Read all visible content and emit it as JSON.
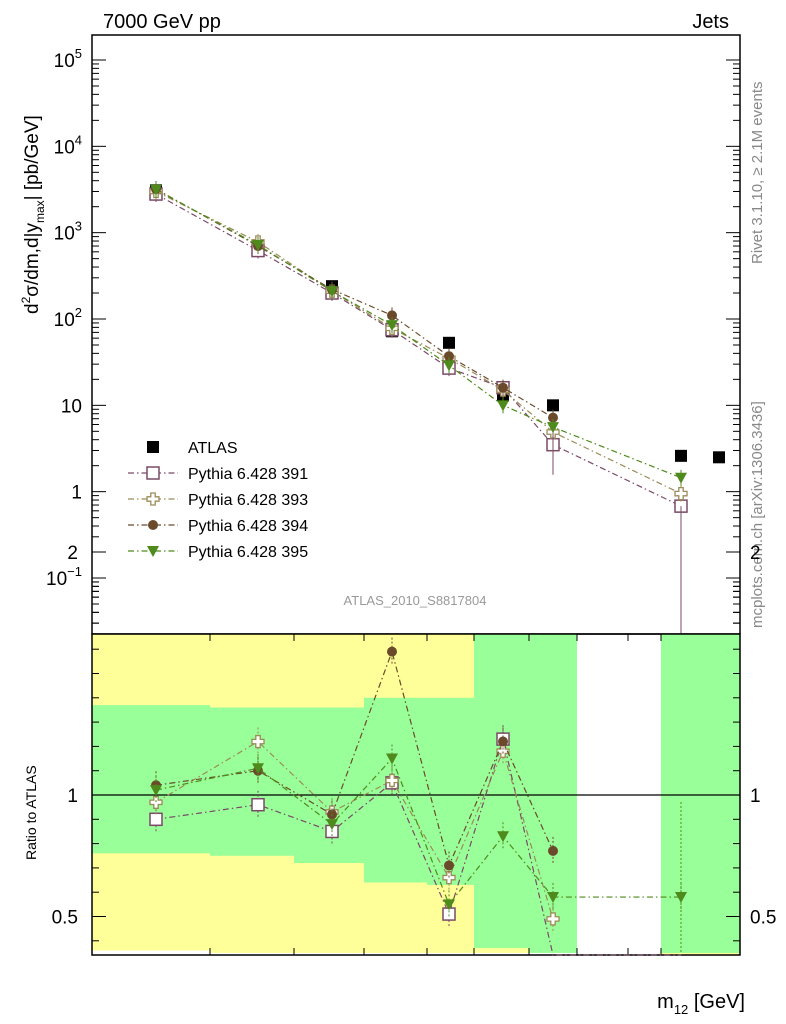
{
  "header": {
    "left": "7000 GeV pp",
    "right": "Jets"
  },
  "side_labels": {
    "rivet": "Rivet 3.1.10, ≥ 2.1M events",
    "mcplots": "mcplots.cern.ch [arXiv:1306.3436]"
  },
  "analysis_label": "ATLAS_2010_S8817804",
  "colors": {
    "atlas": "#000000",
    "p391": "#7a4a66",
    "p393": "#9a8c58",
    "p394": "#6b4a2c",
    "p395": "#4e8a1c",
    "band_inner": "#99ff99",
    "band_outer": "#ffff99"
  },
  "chart_data": [
    {
      "type": "scatter",
      "xlabel": "m12 [GeV]",
      "ylabel": "d²σ/dm,d|ymax| [pb/GeV]",
      "yscale": "log",
      "ylim": [
        0.025,
        200000
      ],
      "y_ticks": [
        "10^5",
        "10^4",
        "10^3",
        "10^2",
        "10",
        "1",
        "10^−1"
      ],
      "legend_position": "lower-left",
      "x": [
        1,
        2,
        3,
        4,
        5,
        6,
        7,
        8,
        9
      ],
      "series": [
        {
          "name": "ATLAS",
          "marker": "square-filled",
          "values": [
            3100,
            640,
            240,
            72,
            53,
            13,
            10,
            2.6,
            2.5
          ]
        },
        {
          "name": "Pythia 6.428 391",
          "marker": "square-open",
          "values": [
            2800,
            620,
            200,
            75,
            27,
            16,
            3.5,
            0.68,
            null
          ]
        },
        {
          "name": "Pythia 6.428 393",
          "marker": "cross-open",
          "values": [
            3000,
            780,
            210,
            78,
            35,
            15,
            4.9,
            0.95,
            null
          ]
        },
        {
          "name": "Pythia 6.428 394",
          "marker": "circle-filled",
          "values": [
            3200,
            700,
            220,
            110,
            37,
            16,
            7.2,
            null,
            null
          ]
        },
        {
          "name": "Pythia 6.428 395",
          "marker": "triangle-down-filled",
          "values": [
            3150,
            720,
            210,
            85,
            29,
            10,
            5.6,
            1.45,
            null
          ]
        }
      ]
    },
    {
      "type": "scatter",
      "ylabel": "Ratio to ATLAS",
      "xlabel": "m12 [GeV]",
      "ylim": [
        0.35,
        2.25
      ],
      "y_ticks": [
        "0.5",
        "1",
        "2"
      ],
      "reference_line": 1,
      "x": [
        1,
        2,
        3,
        4,
        5,
        6,
        7,
        8
      ],
      "bands": {
        "inner": [
          [
            0.76,
            1.37
          ],
          [
            0.75,
            1.36
          ],
          [
            0.72,
            1.36
          ],
          [
            0.64,
            1.4
          ],
          [
            0.63,
            1.4
          ],
          [
            0.37,
            1.66
          ],
          [
            0.35,
            1.7
          ],
          [
            0.35,
            2.02
          ]
        ],
        "outer": [
          [
            0.36,
            1.66
          ],
          [
            0.35,
            1.67
          ],
          [
            0.35,
            1.7
          ],
          [
            0.35,
            1.83
          ],
          [
            0.35,
            1.86
          ],
          [
            0.35,
            2.14
          ],
          [
            0.35,
            2.21
          ],
          [
            0.35,
            2.25
          ]
        ]
      },
      "series": [
        {
          "name": "Pythia 6.428 391",
          "values": [
            0.9,
            0.96,
            0.85,
            1.05,
            0.51,
            1.23,
            0.3,
            null
          ]
        },
        {
          "name": "Pythia 6.428 393",
          "values": [
            0.97,
            1.22,
            0.93,
            1.06,
            0.66,
            1.18,
            0.49,
            null
          ]
        },
        {
          "name": "Pythia 6.428 394",
          "values": [
            1.04,
            1.1,
            0.92,
            1.59,
            0.71,
            1.22,
            0.77,
            null
          ]
        },
        {
          "name": "Pythia 6.428 395",
          "values": [
            1.02,
            1.11,
            0.88,
            1.15,
            0.55,
            0.83,
            0.58,
            0.58
          ]
        }
      ]
    }
  ]
}
